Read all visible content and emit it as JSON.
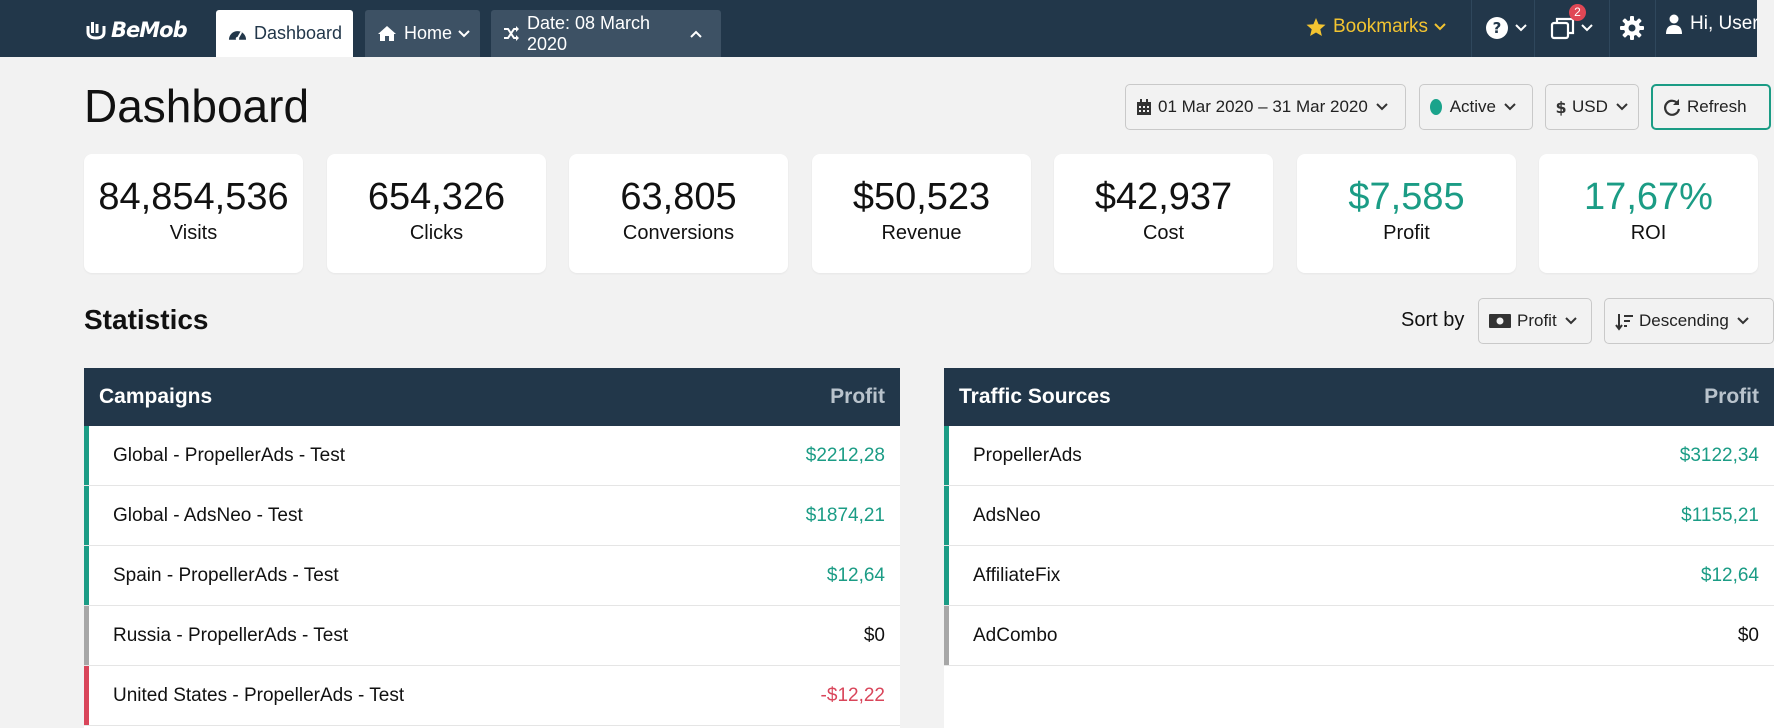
{
  "brand": {
    "name": "BeMob"
  },
  "tabs": [
    {
      "label": "Dashboard",
      "icon": "dashboard-icon",
      "active": true
    },
    {
      "label": "Home",
      "icon": "home-icon"
    },
    {
      "label": "Date: 08 March 2020",
      "icon": "shuffle-icon"
    }
  ],
  "topnav": {
    "bookmarks_label": "Bookmarks",
    "notifications_count": "2",
    "user_label": "Hi, User"
  },
  "page": {
    "title": "Dashboard"
  },
  "filters": {
    "date_range": "01 Mar 2020 – 31 Mar 2020",
    "status": "Active",
    "currency": "USD",
    "refresh_label": "Refresh"
  },
  "stats": [
    {
      "value": "84,854,536",
      "label": "Visits"
    },
    {
      "value": "654,326",
      "label": "Clicks"
    },
    {
      "value": "63,805",
      "label": "Conversions"
    },
    {
      "value": "$50,523",
      "label": "Revenue"
    },
    {
      "value": "$42,937",
      "label": "Cost"
    },
    {
      "value": "$7,585",
      "label": "Profit"
    },
    {
      "value": "17,67%",
      "label": "ROI"
    }
  ],
  "statistics": {
    "title": "Statistics",
    "sort_by_label": "Sort by",
    "sort_field": "Profit",
    "sort_order": "Descending"
  },
  "campaigns": {
    "title": "Campaigns",
    "column": "Profit",
    "rows": [
      {
        "name": "Global - PropellerAds - Test",
        "value": "$2212,28",
        "status": "positive"
      },
      {
        "name": "Global - AdsNeo - Test",
        "value": "$1874,21",
        "status": "positive"
      },
      {
        "name": "Spain - PropellerAds - Test",
        "value": "$12,64",
        "status": "positive"
      },
      {
        "name": "Russia - PropellerAds - Test",
        "value": "$0",
        "status": "neutral"
      },
      {
        "name": "United States - PropellerAds - Test",
        "value": "-$12,22",
        "status": "negative"
      }
    ]
  },
  "traffic_sources": {
    "title": "Traffic Sources",
    "column": "Profit",
    "rows": [
      {
        "name": "PropellerAds",
        "value": "$3122,34",
        "status": "positive"
      },
      {
        "name": "AdsNeo",
        "value": "$1155,21",
        "status": "positive"
      },
      {
        "name": "AffiliateFix",
        "value": "$12,64",
        "status": "positive"
      },
      {
        "name": "AdCombo",
        "value": "$0",
        "status": "neutral"
      }
    ]
  },
  "colors": {
    "navbar": "#22374a",
    "positive": "#1b9c85",
    "negative": "#d9455a",
    "neutral": "#a7a7a7",
    "bookmark": "#f3c431"
  }
}
